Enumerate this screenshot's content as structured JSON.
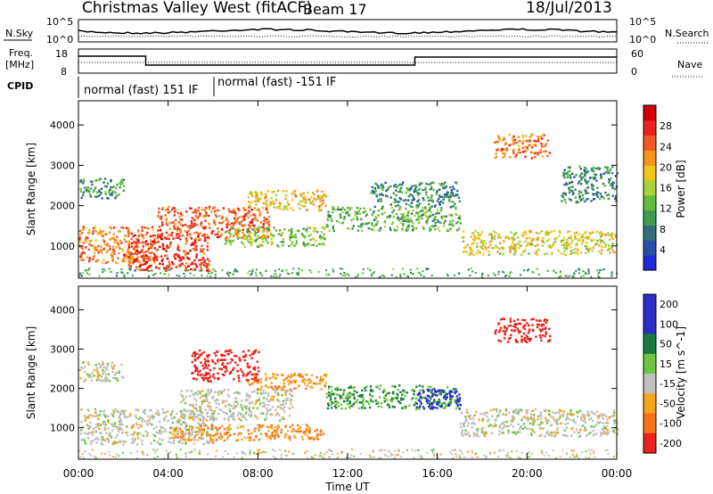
{
  "header": {
    "station": "Christmas Valley West (fitACF)",
    "beam": "Beam 17",
    "date": "18/Jul/2013"
  },
  "noise_panel": {
    "left_label": "N.Sky",
    "right_label": "N.Search",
    "ticks_left": [
      "10^5",
      "10^0"
    ],
    "ticks_right": [
      "10^5",
      "10^0"
    ]
  },
  "freq_panel": {
    "left_label_1": "Freq.",
    "left_label_2": "[MHz]",
    "right_label": "Nave",
    "ticks_left": [
      "18",
      "8"
    ],
    "ticks_right": [
      "60",
      "0"
    ]
  },
  "cpid": {
    "label": "CPID",
    "segments": [
      {
        "text": "normal (fast) 151 IF",
        "start_hour": 0,
        "end_hour": 5.9
      },
      {
        "text": "normal (fast) -151 IF",
        "start_hour": 5.9,
        "end_hour": 24
      }
    ]
  },
  "colors": {
    "power": [
      "#1e2ad8",
      "#2b4ea8",
      "#2e6f7a",
      "#3f9a52",
      "#62bd3e",
      "#a8d43a",
      "#f0c419",
      "#f7941d",
      "#f15a24",
      "#e8221c",
      "#d40000"
    ],
    "velocity": [
      "#2a2fc8",
      "#1a7a3c",
      "#6cc640",
      "#bfbfbf",
      "#f7a41d",
      "#f7741d",
      "#e8221c"
    ]
  },
  "chart_data": [
    {
      "type": "heatmap",
      "name": "power",
      "ylabel": "Slant Range [km]",
      "y_ticks": [
        1000,
        2000,
        3000,
        4000
      ],
      "ylim": [
        200,
        4600
      ],
      "xlim": [
        0,
        24
      ],
      "colorbar_label": "Power [dB]",
      "colorbar_range": [
        0,
        32
      ],
      "colorbar_ticks": [
        4,
        8,
        12,
        16,
        20,
        24,
        28
      ],
      "echo_bands": [
        {
          "x": [
            0,
            3.5
          ],
          "y": [
            600,
            1500
          ],
          "level": 24
        },
        {
          "x": [
            2.2,
            5.8
          ],
          "y": [
            400,
            1300
          ],
          "level": 28
        },
        {
          "x": [
            3.5,
            8.5
          ],
          "y": [
            1200,
            2000
          ],
          "level": 26
        },
        {
          "x": [
            7.5,
            11
          ],
          "y": [
            1900,
            2400
          ],
          "level": 20
        },
        {
          "x": [
            6.5,
            11
          ],
          "y": [
            1000,
            1500
          ],
          "level": 14
        },
        {
          "x": [
            11,
            17
          ],
          "y": [
            1400,
            2000
          ],
          "level": 12
        },
        {
          "x": [
            13,
            17
          ],
          "y": [
            2000,
            2600
          ],
          "level": 8
        },
        {
          "x": [
            17,
            24
          ],
          "y": [
            800,
            1400
          ],
          "level": 18
        },
        {
          "x": [
            18.5,
            21
          ],
          "y": [
            3200,
            3800
          ],
          "level": 24
        },
        {
          "x": [
            21.5,
            24
          ],
          "y": [
            2100,
            3000
          ],
          "level": 8
        },
        {
          "x": [
            0,
            2
          ],
          "y": [
            2200,
            2700
          ],
          "level": 10
        }
      ]
    },
    {
      "type": "heatmap",
      "name": "velocity",
      "ylabel": "Slant Range [km]",
      "y_ticks": [
        1000,
        2000,
        3000,
        4000
      ],
      "ylim": [
        200,
        4600
      ],
      "xlim": [
        0,
        24
      ],
      "colorbar_label": "Velocity [m s^-1]",
      "colorbar_ticks": [
        200,
        100,
        50,
        15,
        -15,
        -50,
        -100,
        -200
      ],
      "echo_bands": [
        {
          "x": [
            0,
            6
          ],
          "y": [
            600,
            1500
          ],
          "value": 0
        },
        {
          "x": [
            4,
            11
          ],
          "y": [
            700,
            1100
          ],
          "value": -60
        },
        {
          "x": [
            4.5,
            9.5
          ],
          "y": [
            1200,
            2000
          ],
          "value": 0
        },
        {
          "x": [
            5,
            8
          ],
          "y": [
            2200,
            3000
          ],
          "value": -200
        },
        {
          "x": [
            7.5,
            11
          ],
          "y": [
            2000,
            2400
          ],
          "value": -50
        },
        {
          "x": [
            11,
            17
          ],
          "y": [
            1500,
            2100
          ],
          "value": 60
        },
        {
          "x": [
            15,
            17
          ],
          "y": [
            1500,
            2000
          ],
          "value": 150
        },
        {
          "x": [
            17,
            24
          ],
          "y": [
            800,
            1500
          ],
          "value": 0
        },
        {
          "x": [
            18.5,
            21
          ],
          "y": [
            3200,
            3800
          ],
          "value": -200
        },
        {
          "x": [
            0,
            2
          ],
          "y": [
            2200,
            2700
          ],
          "value": 0
        }
      ]
    }
  ],
  "x_axis": {
    "label": "Time UT",
    "tick_labels": [
      "00:00",
      "04:00",
      "08:00",
      "12:00",
      "16:00",
      "20:00",
      "00:00"
    ],
    "tick_hours": [
      0,
      4,
      8,
      12,
      16,
      20,
      24
    ]
  }
}
